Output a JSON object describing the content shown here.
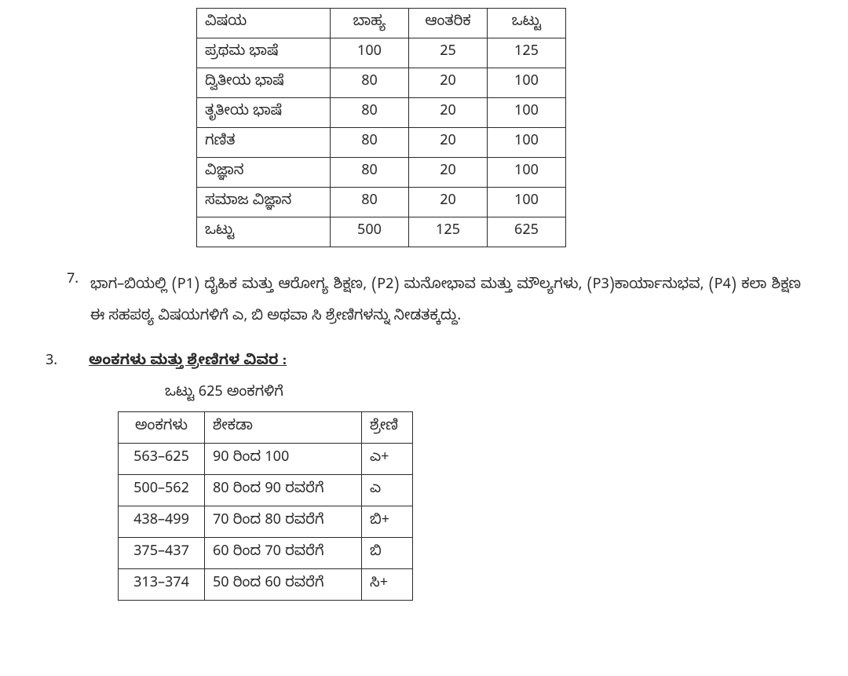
{
  "marksTable": {
    "headers": {
      "subject": "ವಿಷಯ",
      "external": "ಬಾಹ್ಯ",
      "internal": "ಆಂತರಿಕ",
      "total": "ಒಟ್ಟು"
    },
    "rows": [
      {
        "subject": "ಪ್ರಥಮ ಭಾಷೆ",
        "external": "100",
        "internal": "25",
        "total": "125"
      },
      {
        "subject": "ದ್ವಿತೀಯ ಭಾಷೆ",
        "external": "80",
        "internal": "20",
        "total": "100"
      },
      {
        "subject": "ತೃತೀಯ ಭಾಷೆ",
        "external": "80",
        "internal": "20",
        "total": "100"
      },
      {
        "subject": "ಗಣಿತ",
        "external": "80",
        "internal": "20",
        "total": "100"
      },
      {
        "subject": "ವಿಜ್ಞಾನ",
        "external": "80",
        "internal": "20",
        "total": "100"
      },
      {
        "subject": "ಸಮಾಜ ವಿಜ್ಞಾನ",
        "external": "80",
        "internal": "20",
        "total": "100"
      },
      {
        "subject": "ಒಟ್ಟು",
        "external": "500",
        "internal": "125",
        "total": "625"
      }
    ]
  },
  "paragraph7": {
    "num": "7.",
    "text": "ಭಾಗ–ಬಿಯಲ್ಲಿ (P1) ದೈಹಿಕ ಮತ್ತು ಆರೋಗ್ಯ ಶಿಕ್ಷಣ, (P2) ಮನೋಭಾವ ಮತ್ತು ಮೌಲ್ಯಗಳು, (P3)ಕಾರ್ಯಾನುಭವ, (P4) ಕಲಾ ಶಿಕ್ಷಣ ಈ ಸಹಪಠ್ಯ ವಿಷಯಗಳಿಗೆ ಎ, ಬಿ ಅಥವಾ ಸಿ ಶ್ರೇಣಿಗಳನ್ನು ನೀಡತಕ್ಕದ್ದು."
  },
  "section3": {
    "num": "3.",
    "title": "ಅಂಕಗಳು ಮತ್ತು ಶ್ರೇಣಿಗಳ ವಿವರ :"
  },
  "gradeHeading": "ಒಟ್ಟು 625 ಅಂಕಗಳಿಗೆ",
  "gradeTable": {
    "headers": {
      "marks": "ಅಂಕಗಳು",
      "percentage": "ಶೇಕಡಾ",
      "grade": "ಶ್ರೇಣಿ"
    },
    "rows": [
      {
        "marks": "563–625",
        "percentage": "90 ರಿಂದ 100",
        "grade": "ಎ+"
      },
      {
        "marks": "500–562",
        "percentage": "80 ರಿಂದ 90 ರವರೆಗೆ",
        "grade": "ಎ"
      },
      {
        "marks": "438–499",
        "percentage": "70 ರಿಂದ 80 ರವರೆಗೆ",
        "grade": "ಬಿ+"
      },
      {
        "marks": "375–437",
        "percentage": "60 ರಿಂದ 70 ರವರೆಗೆ",
        "grade": "ಬಿ"
      },
      {
        "marks": "313–374",
        "percentage": "50 ರಿಂದ 60 ರವರೆಗೆ",
        "grade": "ಸಿ+"
      }
    ]
  }
}
